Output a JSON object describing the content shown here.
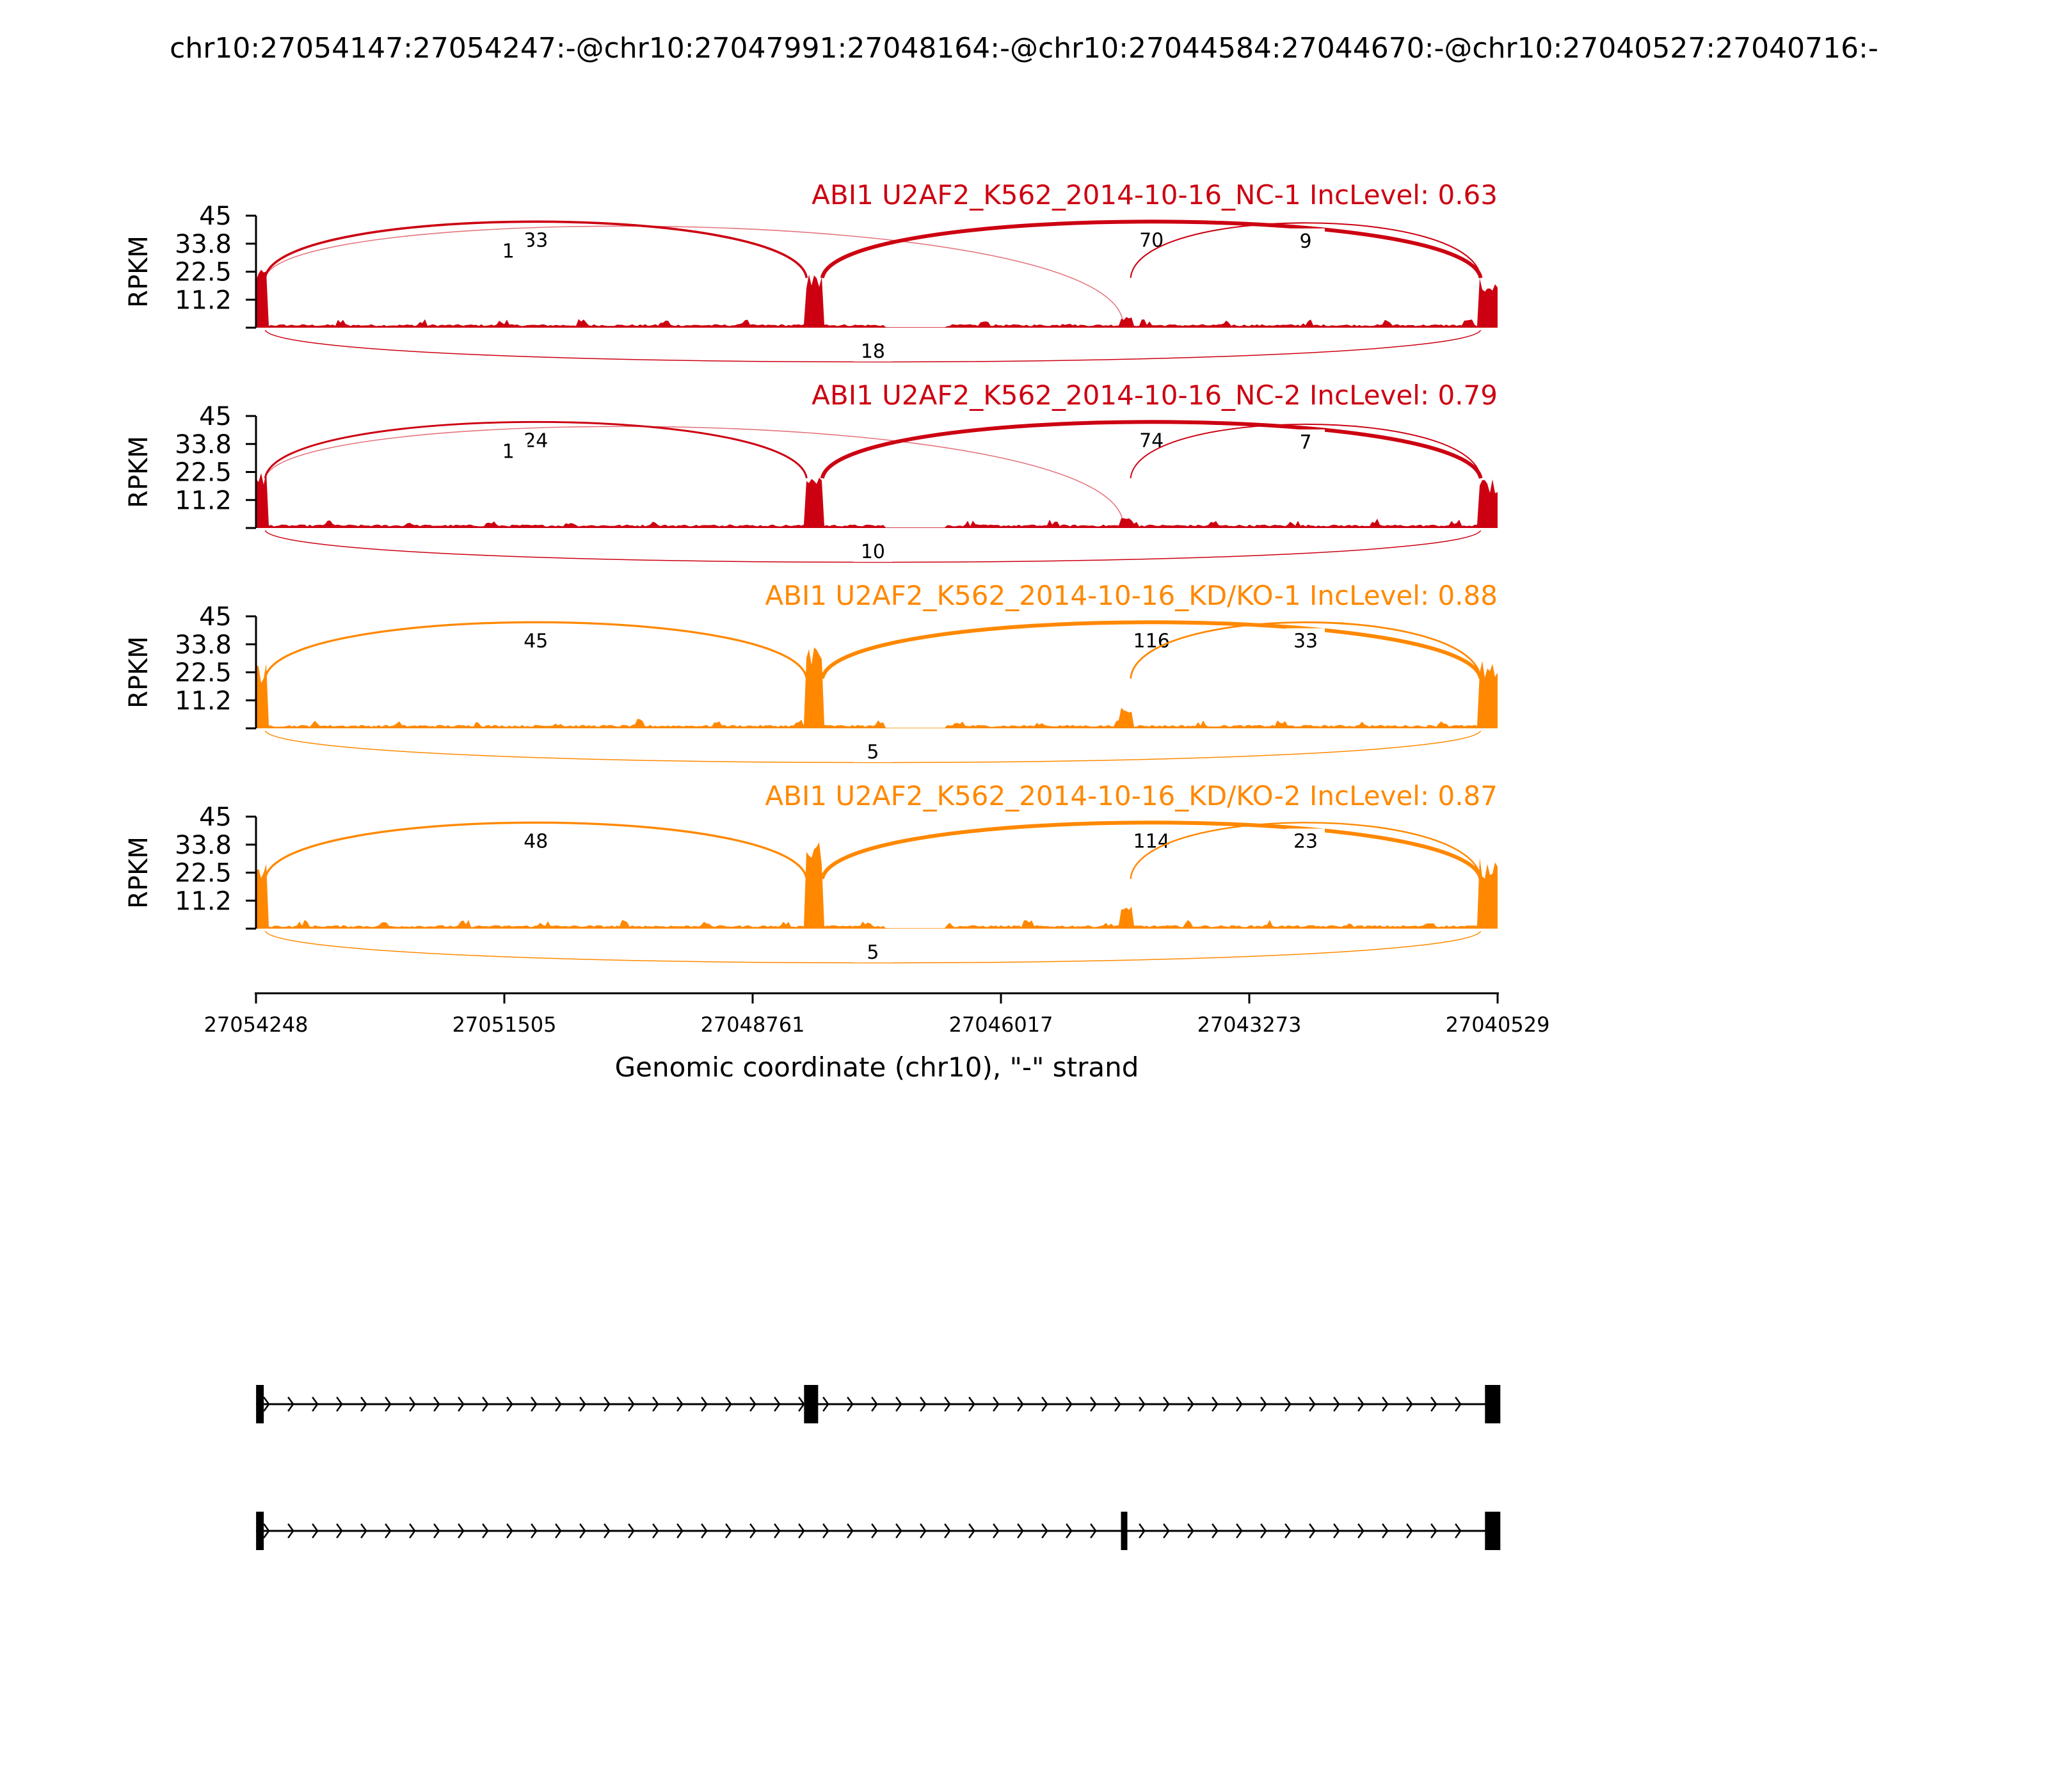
{
  "chart_data": {
    "type": "sashimi",
    "title": "chr10:27054147:27054247:-@chr10:27047991:27048164:-@chr10:27044584:27044670:-@chr10:27040527:27040716:-",
    "xlabel": "Genomic coordinate (chr10), \"-\" strand",
    "x_ticks": [
      "27054248",
      "27051505",
      "27048761",
      "27046017",
      "27043273",
      "27040529"
    ],
    "xlim": [
      27054248,
      27040529
    ],
    "ylabel": "RPKM",
    "y_ticks": [
      "45",
      "33.8",
      "22.5",
      "11.2"
    ],
    "ylim": [
      0,
      45
    ],
    "exons": [
      {
        "start": 27054247,
        "end": 27054147
      },
      {
        "start": 27048164,
        "end": 27047991
      },
      {
        "start": 27044670,
        "end": 27044584
      },
      {
        "start": 27040716,
        "end": 27040527
      }
    ],
    "samples": [
      {
        "label": "ABI1 U2AF2_K562_2014-10-16_NC-1 IncLevel: 0.63",
        "color": "#cc0011",
        "junctions": [
          {
            "from": 27054147,
            "to": 27048164,
            "count": "33",
            "side": "top"
          },
          {
            "from": 27054147,
            "to": 27044670,
            "count": "1",
            "side": "top"
          },
          {
            "from": 27047991,
            "to": 27040716,
            "count": "70",
            "side": "top"
          },
          {
            "from": 27044584,
            "to": 27040716,
            "count": "9",
            "side": "top"
          },
          {
            "from": 27054147,
            "to": 27040716,
            "count": "18",
            "side": "bottom"
          }
        ]
      },
      {
        "label": "ABI1 U2AF2_K562_2014-10-16_NC-2 IncLevel: 0.79",
        "color": "#cc0011",
        "junctions": [
          {
            "from": 27054147,
            "to": 27048164,
            "count": "24",
            "side": "top"
          },
          {
            "from": 27054147,
            "to": 27044670,
            "count": "1",
            "side": "top"
          },
          {
            "from": 27047991,
            "to": 27040716,
            "count": "74",
            "side": "top"
          },
          {
            "from": 27044584,
            "to": 27040716,
            "count": "7",
            "side": "top"
          },
          {
            "from": 27054147,
            "to": 27040716,
            "count": "10",
            "side": "bottom"
          }
        ]
      },
      {
        "label": "ABI1 U2AF2_K562_2014-10-16_KD/KO-1 IncLevel: 0.88",
        "color": "#ff8800",
        "junctions": [
          {
            "from": 27054147,
            "to": 27048164,
            "count": "45",
            "side": "top"
          },
          {
            "from": 27047991,
            "to": 27040716,
            "count": "116",
            "side": "top"
          },
          {
            "from": 27044584,
            "to": 27040716,
            "count": "33",
            "side": "top"
          },
          {
            "from": 27054147,
            "to": 27040716,
            "count": "5",
            "side": "bottom"
          }
        ]
      },
      {
        "label": "ABI1 U2AF2_K562_2014-10-16_KD/KO-2 IncLevel: 0.87",
        "color": "#ff8800",
        "junctions": [
          {
            "from": 27054147,
            "to": 27048164,
            "count": "48",
            "side": "top"
          },
          {
            "from": 27047991,
            "to": 27040716,
            "count": "114",
            "side": "top"
          },
          {
            "from": 27044584,
            "to": 27040716,
            "count": "23",
            "side": "top"
          },
          {
            "from": 27054147,
            "to": 27040716,
            "count": "5",
            "side": "bottom"
          }
        ]
      }
    ],
    "isoforms": [
      {
        "exons": [
          0,
          1,
          3
        ]
      },
      {
        "exons": [
          0,
          2,
          3
        ]
      }
    ]
  }
}
